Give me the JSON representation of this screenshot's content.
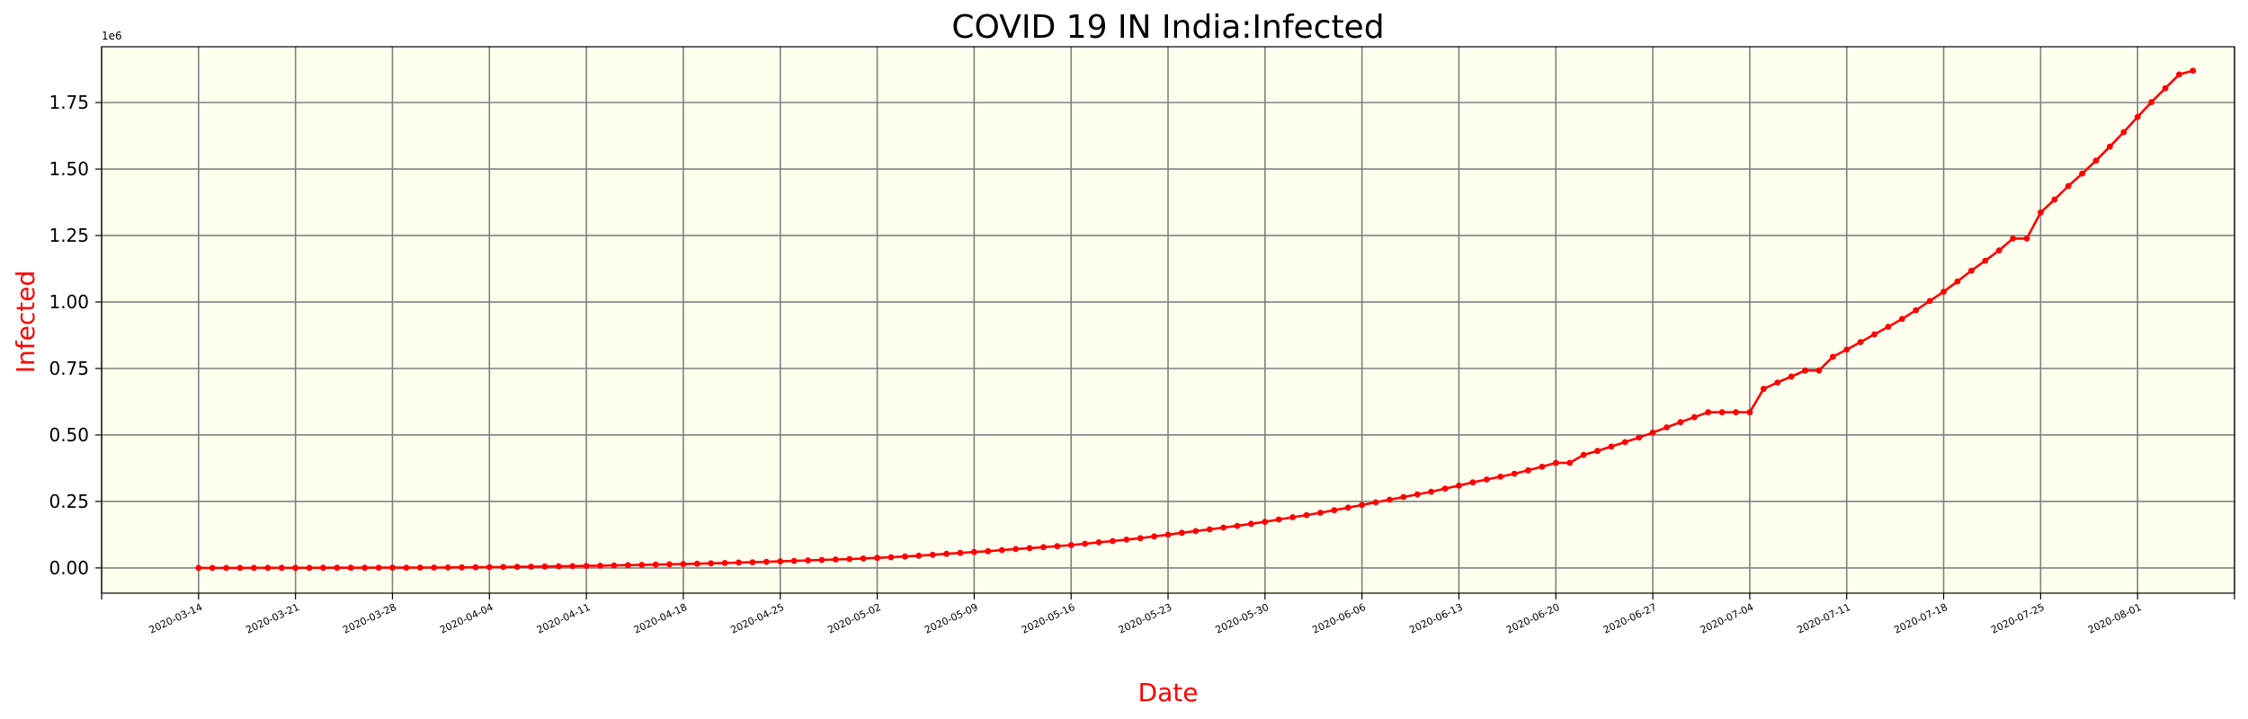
{
  "chart_data": {
    "type": "line",
    "title": "COVID 19 IN India:Infected",
    "xlabel": "Date",
    "ylabel": "Infected",
    "y_offset_label": "1e6",
    "ylim": [
      -95000,
      1960000
    ],
    "xlim": [
      "2020-03-07",
      "2020-08-08"
    ],
    "grid": true,
    "colors": {
      "plot_background": "#fefeee",
      "series_line": "#ff0000",
      "axis_label": "#ff0000",
      "grid": "#808080"
    },
    "y_tick_values": [
      0,
      250000,
      500000,
      750000,
      1000000,
      1250000,
      1500000,
      1750000
    ],
    "y_tick_labels": [
      "0.00",
      "0.25",
      "0.50",
      "0.75",
      "1.00",
      "1.25",
      "1.50",
      "1.75"
    ],
    "x_tick_labels": [
      "2020-03-14",
      "2020-03-21",
      "2020-03-28",
      "2020-04-04",
      "2020-04-11",
      "2020-04-18",
      "2020-04-25",
      "2020-05-02",
      "2020-05-09",
      "2020-05-16",
      "2020-05-23",
      "2020-05-30",
      "2020-06-06",
      "2020-06-13",
      "2020-06-20",
      "2020-06-27",
      "2020-07-04",
      "2020-07-11",
      "2020-07-18",
      "2020-07-25",
      "2020-08-01"
    ],
    "x_tick_marks": [
      "2020-03-07",
      "2020-03-14",
      "2020-03-21",
      "2020-03-28",
      "2020-04-04",
      "2020-04-11",
      "2020-04-18",
      "2020-04-25",
      "2020-05-02",
      "2020-05-09",
      "2020-05-16",
      "2020-05-23",
      "2020-05-30",
      "2020-06-06",
      "2020-06-13",
      "2020-06-20",
      "2020-06-27",
      "2020-07-04",
      "2020-07-11",
      "2020-07-18",
      "2020-07-25",
      "2020-08-01",
      "2020-08-08"
    ],
    "series": [
      {
        "start_date": "2020-03-14",
        "values": [
          100,
          110,
          120,
          140,
          170,
          200,
          250,
          300,
          400,
          500,
          560,
          650,
          730,
          880,
          980,
          1100,
          1250,
          1400,
          1630,
          2000,
          2400,
          2900,
          3400,
          4100,
          4800,
          5300,
          6100,
          6800,
          7600,
          8400,
          9400,
          10400,
          11400,
          12400,
          13400,
          14400,
          15700,
          17200,
          18600,
          20100,
          21400,
          23100,
          24500,
          26500,
          28400,
          30000,
          31900,
          33600,
          35400,
          37800,
          40300,
          43000,
          46000,
          49400,
          52900,
          56300,
          59700,
          62900,
          67200,
          70800,
          74300,
          78000,
          81900,
          85800,
          90900,
          96200,
          101000,
          106500,
          112000,
          118500,
          125000,
          132000,
          138500,
          145000,
          151700,
          158300,
          165800,
          173500,
          182200,
          190500,
          198700,
          207600,
          216900,
          226800,
          236700,
          246600,
          256600,
          266600,
          276600,
          286600,
          298300,
          309600,
          321600,
          332400,
          343100,
          354100,
          366900,
          380500,
          395000,
          395000,
          425300,
          440200,
          456200,
          473100,
          490400,
          508900,
          528600,
          548300,
          566800,
          585500,
          585500,
          585500,
          585500,
          673200,
          697400,
          719700,
          742400,
          742400,
          793800,
          820900,
          849500,
          878300,
          906800,
          936200,
          968900,
          1003800,
          1038700,
          1077600,
          1118000,
          1155200,
          1194000,
          1238600,
          1238600,
          1336900,
          1385500,
          1436000,
          1483200,
          1531700,
          1584400,
          1638900,
          1695900,
          1751900,
          1803700,
          1855700,
          1870000
        ]
      }
    ]
  }
}
